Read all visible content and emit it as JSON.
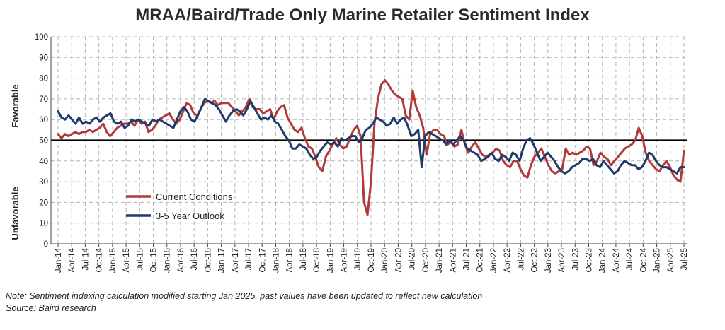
{
  "title": "MRAA/Baird/Trade Only Marine Retailer Sentiment Index",
  "note": "Note: Sentiment indexing calculation modified  starting Jan 2025, past values have been updated to reflect new calculation",
  "source": "Source: Baird research",
  "colors": {
    "current": "#b03a3a",
    "outlook": "#1f3a6b",
    "threshold": "#000000",
    "grid": "#b5b5b5"
  },
  "chart_data": {
    "type": "line",
    "title": "MRAA/Baird/Trade Only Marine Retailer Sentiment Index",
    "side_labels": {
      "top": "Favorable",
      "bottom": "Unfavorable"
    },
    "ylim": [
      0,
      100
    ],
    "yticks": [
      0,
      10,
      20,
      30,
      40,
      50,
      60,
      70,
      80,
      90,
      100
    ],
    "threshold": 50,
    "grid": true,
    "legend_placement": "lower-left",
    "x_tick_labels": [
      "Jan-14",
      "Apr-14",
      "Jul-14",
      "Oct-14",
      "Jan-15",
      "Apr-15",
      "Jul-15",
      "Oct-15",
      "Jan-16",
      "Apr-16",
      "Jul-16",
      "Oct-16",
      "Jan-17",
      "Apr-17",
      "Jul-17",
      "Oct-17",
      "Jan-18",
      "Apr-18",
      "Jul-18",
      "Oct-18",
      "Jan-19",
      "Apr-19",
      "Jul-19",
      "Oct-19",
      "Jan-20",
      "Apr-20",
      "Jul-20",
      "Oct-20",
      "Jan-21",
      "Apr-21",
      "Jul-21",
      "Oct-21",
      "Jan-22",
      "Apr-22",
      "Jul-22",
      "Oct-22",
      "Jan-23",
      "Apr-23",
      "Jul-23",
      "Oct-23",
      "Jan-24",
      "Apr-24",
      "Jul-24",
      "Oct-24",
      "Jan-25",
      "Apr-25",
      "Jul-25"
    ],
    "series": [
      {
        "name": "Current Conditions",
        "color": "#b03a3a",
        "values": [
          53,
          51,
          53,
          52,
          53,
          54,
          53,
          54,
          54,
          55,
          54,
          55,
          56,
          58,
          54,
          52,
          54,
          56,
          57,
          58,
          58,
          59,
          57,
          60,
          58,
          59,
          54,
          55,
          57,
          60,
          61,
          62,
          63,
          60,
          58,
          60,
          64,
          68,
          67,
          63,
          62,
          65,
          68,
          69,
          68,
          69,
          67,
          68,
          68,
          68,
          66,
          64,
          62,
          64,
          66,
          70,
          66,
          65,
          65,
          63,
          64,
          65,
          60,
          64,
          66,
          67,
          61,
          58,
          55,
          54,
          56,
          51,
          47,
          46,
          42,
          37,
          35,
          42,
          45,
          48,
          51,
          48,
          46,
          47,
          51,
          55,
          57,
          52,
          20,
          14,
          30,
          58,
          70,
          77,
          79,
          77,
          74,
          72,
          71,
          70,
          62,
          60,
          74,
          66,
          62,
          56,
          43,
          53,
          55,
          55,
          53,
          52,
          48,
          49,
          47,
          48,
          55,
          48,
          44,
          47,
          49,
          46,
          43,
          42,
          43,
          44,
          46,
          45,
          40,
          38,
          37,
          40,
          40,
          36,
          33,
          32,
          38,
          42,
          44,
          46,
          42,
          38,
          35,
          34,
          35,
          36,
          46,
          43,
          44,
          43,
          44,
          45,
          47,
          46,
          38,
          40,
          44,
          42,
          41,
          38,
          40,
          42,
          44,
          46,
          47,
          48,
          50,
          56,
          52,
          44,
          40,
          38,
          36,
          35,
          38,
          40,
          37,
          33,
          31,
          30,
          45
        ]
      },
      {
        "name": "3-5 Year Outlook",
        "color": "#1f3a6b",
        "values": [
          64,
          61,
          60,
          62,
          60,
          58,
          61,
          58,
          59,
          58,
          60,
          61,
          59,
          61,
          62,
          63,
          59,
          58,
          59,
          56,
          57,
          60,
          59,
          60,
          59,
          58,
          57,
          60,
          59,
          60,
          59,
          58,
          57,
          56,
          60,
          64,
          66,
          64,
          60,
          59,
          62,
          66,
          70,
          69,
          68,
          67,
          65,
          62,
          59,
          62,
          64,
          65,
          64,
          62,
          65,
          69,
          66,
          63,
          60,
          61,
          60,
          62,
          59,
          58,
          55,
          52,
          50,
          46,
          46,
          48,
          47,
          46,
          43,
          41,
          42,
          45,
          47,
          49,
          48,
          49,
          47,
          51,
          50,
          51,
          52,
          52,
          49,
          51,
          55,
          56,
          58,
          61,
          60,
          59,
          57,
          58,
          61,
          58,
          60,
          61,
          57,
          52,
          53,
          55,
          37,
          52,
          54,
          53,
          52,
          51,
          50,
          48,
          50,
          48,
          50,
          52,
          50,
          46,
          45,
          44,
          43,
          40,
          41,
          42,
          44,
          41,
          40,
          43,
          42,
          40,
          44,
          43,
          40,
          46,
          50,
          51,
          48,
          44,
          40,
          42,
          44,
          42,
          40,
          37,
          35,
          34,
          35,
          37,
          38,
          39,
          41,
          41,
          40,
          41,
          38,
          37,
          40,
          38,
          36,
          34,
          35,
          38,
          40,
          39,
          38,
          38,
          36,
          37,
          40,
          44,
          43,
          40,
          38,
          37,
          37,
          36,
          35,
          34,
          37,
          37
        ]
      }
    ]
  }
}
